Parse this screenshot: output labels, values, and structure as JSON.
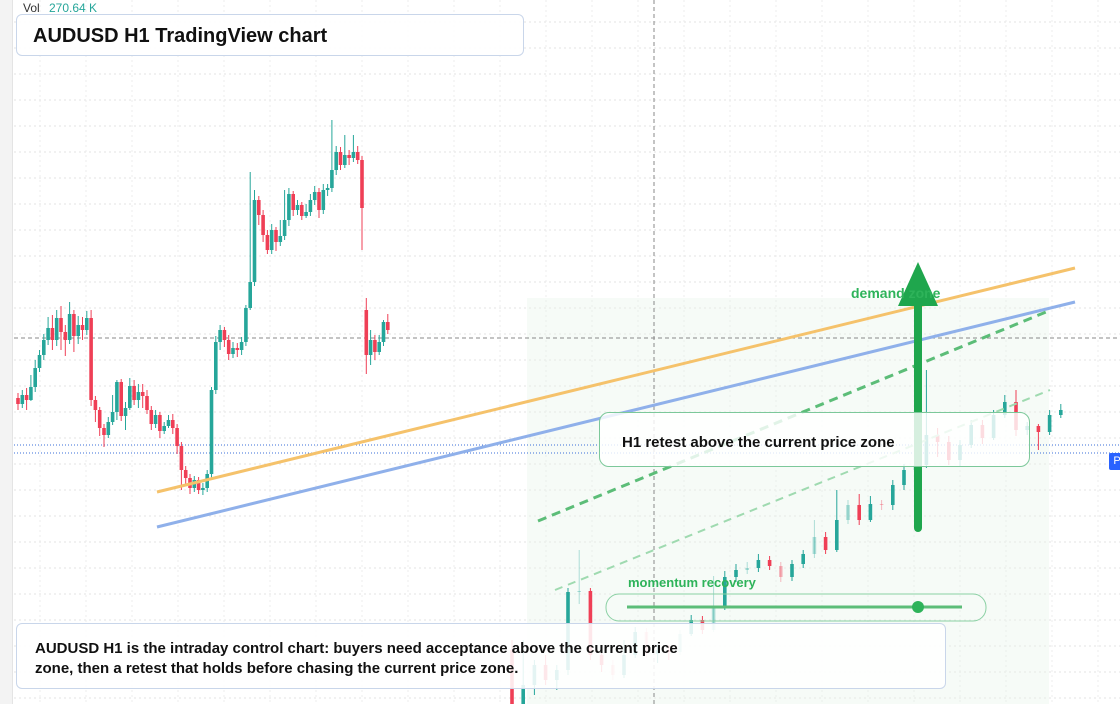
{
  "header": {
    "vol_label": "Vol",
    "vol_value": "270.64 K",
    "title": "AUDUSD H1 TradingView chart"
  },
  "annotations": {
    "retest": "H1 retest above the current price zone",
    "demand": "demand zone",
    "momentum": "momentum recovery",
    "note": "AUDUSD H1 is the intraday control chart: buyers need acceptance above the current price zone, then a retest that holds before chasing the current price zone.",
    "price_tag": "P"
  },
  "colors": {
    "up": "#26a69a",
    "down": "#ef3f56",
    "trend_orange": "#f5c26b",
    "trend_blue": "#8fb0ea",
    "zone_green": "#2eb35a",
    "arrow_green": "#1fa64d"
  },
  "chart_data": {
    "type": "candlestick",
    "title": "AUDUSD H1 TradingView chart",
    "y_axis": "price (scale not labeled)",
    "candles_ohlc": [
      [
        64.2,
        63.6,
        64.7,
        63.0
      ],
      [
        63.6,
        64.5,
        65.0,
        63.2
      ],
      [
        64.5,
        64.0,
        65.2,
        63.0
      ],
      [
        64.0,
        65.3,
        66.5,
        63.9
      ],
      [
        65.3,
        67.2,
        68.0,
        64.8
      ],
      [
        67.2,
        68.5,
        69.0,
        66.8
      ],
      [
        68.5,
        70.0,
        70.6,
        68.0
      ],
      [
        70.0,
        71.2,
        72.3,
        69.5
      ],
      [
        71.2,
        70.0,
        72.5,
        69.0
      ],
      [
        70.0,
        72.2,
        73.0,
        69.4
      ],
      [
        72.2,
        70.8,
        73.4,
        69.0
      ],
      [
        70.8,
        70.0,
        71.5,
        68.4
      ],
      [
        70.0,
        72.6,
        73.8,
        69.6
      ],
      [
        72.6,
        70.4,
        73.0,
        68.8
      ],
      [
        70.4,
        71.5,
        72.4,
        69.6
      ],
      [
        71.5,
        71.0,
        72.3,
        70.0
      ],
      [
        71.0,
        72.2,
        72.9,
        70.5
      ],
      [
        72.2,
        64.0,
        73.0,
        63.4
      ],
      [
        64.0,
        63.0,
        64.4,
        61.8
      ],
      [
        63.0,
        61.2,
        63.3,
        60.4
      ],
      [
        61.2,
        60.5,
        61.6,
        59.3
      ],
      [
        60.5,
        61.8,
        62.3,
        60.2
      ],
      [
        61.8,
        62.8,
        64.5,
        61.5
      ],
      [
        62.8,
        65.8,
        66.0,
        62.0
      ],
      [
        65.8,
        62.4,
        66.1,
        61.9
      ],
      [
        62.4,
        63.2,
        63.8,
        61.0
      ],
      [
        63.2,
        65.4,
        66.2,
        63.0
      ],
      [
        65.4,
        64.0,
        66.0,
        63.5
      ],
      [
        64.0,
        64.8,
        65.6,
        63.2
      ],
      [
        64.8,
        64.4,
        65.6,
        63.2
      ],
      [
        64.4,
        63.0,
        65.0,
        62.6
      ],
      [
        63.0,
        61.6,
        63.4,
        61.0
      ],
      [
        61.6,
        62.5,
        63.0,
        61.2
      ],
      [
        62.5,
        60.9,
        62.8,
        60.2
      ],
      [
        60.9,
        61.4,
        61.8,
        60.6
      ],
      [
        61.4,
        62.0,
        62.5,
        61.2
      ],
      [
        62.0,
        61.2,
        62.6,
        60.6
      ],
      [
        61.2,
        59.4,
        61.6,
        58.6
      ],
      [
        59.4,
        57.0,
        59.8,
        55.0
      ],
      [
        57.0,
        56.2,
        57.4,
        55.6
      ],
      [
        56.2,
        55.2,
        56.6,
        54.6
      ],
      [
        55.2,
        56.0,
        56.4,
        54.8
      ],
      [
        56.0,
        55.0,
        56.3,
        54.6
      ],
      [
        55.0,
        55.2,
        55.7,
        54.5
      ],
      [
        55.2,
        56.6,
        57.0,
        54.8
      ],
      [
        56.6,
        65.0,
        65.3,
        56.2
      ],
      [
        65.0,
        69.8,
        70.4,
        64.6
      ],
      [
        69.8,
        71.0,
        71.5,
        69.0
      ],
      [
        71.0,
        70.0,
        71.3,
        69.3
      ],
      [
        70.0,
        68.6,
        70.5,
        68.0
      ],
      [
        68.6,
        69.2,
        69.8,
        68.2
      ],
      [
        69.2,
        69.0,
        69.7,
        68.3
      ],
      [
        69.0,
        69.8,
        70.3,
        68.5
      ],
      [
        69.8,
        73.2,
        73.5,
        69.4
      ],
      [
        73.2,
        75.8,
        86.8,
        73.0
      ],
      [
        75.8,
        84.0,
        85.0,
        75.4
      ],
      [
        84.0,
        82.5,
        84.4,
        81.5
      ],
      [
        82.5,
        80.5,
        83.0,
        79.8
      ],
      [
        80.5,
        79.0,
        81.0,
        78.6
      ],
      [
        79.0,
        81.0,
        81.6,
        78.6
      ],
      [
        81.0,
        79.8,
        81.3,
        78.9
      ],
      [
        79.8,
        80.4,
        82.0,
        79.4
      ],
      [
        80.4,
        82.0,
        85.0,
        80.0
      ],
      [
        82.0,
        84.6,
        85.2,
        81.4
      ],
      [
        84.6,
        83.0,
        84.9,
        82.4
      ],
      [
        83.0,
        83.5,
        84.0,
        82.5
      ],
      [
        83.5,
        82.4,
        83.8,
        82.0
      ],
      [
        82.4,
        82.8,
        83.6,
        82.2
      ],
      [
        82.8,
        84.0,
        84.6,
        82.4
      ],
      [
        84.0,
        84.8,
        85.4,
        83.5
      ],
      [
        84.8,
        83.0,
        85.2,
        82.2
      ],
      [
        83.0,
        85.0,
        85.6,
        82.6
      ],
      [
        85.0,
        85.2,
        85.6,
        84.4
      ],
      [
        85.2,
        87.0,
        92.0,
        84.8
      ],
      [
        87.0,
        88.8,
        89.4,
        86.5
      ],
      [
        88.8,
        87.5,
        89.3,
        87.0
      ],
      [
        87.5,
        88.5,
        90.5,
        87.2
      ],
      [
        88.5,
        88.2,
        89.0,
        87.5
      ],
      [
        88.2,
        88.8,
        90.5,
        87.8
      ],
      [
        88.8,
        88.0,
        89.4,
        87.6
      ],
      [
        88.0,
        83.2,
        88.4,
        79.0
      ],
      [
        73.0,
        68.5,
        74.2,
        66.6
      ],
      [
        68.5,
        70.0,
        71.0,
        67.5
      ],
      [
        70.0,
        68.8,
        70.5,
        68.0
      ],
      [
        68.8,
        69.8,
        70.5,
        68.5
      ],
      [
        69.8,
        71.8,
        72.0,
        69.4
      ],
      [
        71.8,
        71.0,
        72.6,
        70.6
      ]
    ],
    "candles_second_segment_ohlc": [
      [
        21.0,
        15.0,
        22.0,
        14.0
      ],
      [
        15.0,
        17.5,
        22.0,
        14.5
      ],
      [
        17.5,
        19.5,
        20.0,
        16.5
      ],
      [
        19.5,
        18.0,
        20.5,
        17.5
      ],
      [
        18.0,
        19.0,
        19.5,
        17.0
      ],
      [
        19.0,
        26.8,
        27.2,
        18.5
      ],
      [
        26.8,
        26.9,
        31.0,
        25.6
      ],
      [
        26.9,
        20.5,
        27.2,
        20.0
      ],
      [
        20.5,
        19.5,
        21.0,
        18.8
      ],
      [
        19.5,
        18.5,
        20.0,
        18.0
      ],
      [
        18.5,
        20.5,
        22.0,
        18.2
      ],
      [
        20.5,
        22.8,
        23.3,
        20.2
      ],
      [
        22.8,
        20.6,
        23.2,
        20.2
      ],
      [
        20.6,
        21.0,
        21.6,
        19.7
      ],
      [
        21.0,
        20.8,
        21.5,
        20.0
      ],
      [
        20.8,
        22.6,
        23.0,
        20.5
      ],
      [
        22.6,
        24.0,
        24.5,
        22.4
      ],
      [
        24.0,
        23.0,
        24.4,
        22.6
      ],
      [
        23.0,
        25.2,
        28.4,
        22.8
      ],
      [
        25.2,
        28.3,
        28.9,
        25.0
      ],
      [
        28.3,
        29.0,
        29.6,
        27.8
      ],
      [
        29.0,
        29.2,
        29.8,
        28.6
      ],
      [
        29.2,
        30.0,
        30.6,
        28.8
      ],
      [
        30.0,
        29.4,
        30.4,
        29.0
      ],
      [
        29.4,
        28.3,
        29.8,
        27.8
      ],
      [
        28.3,
        29.6,
        30.0,
        27.9
      ],
      [
        29.6,
        30.6,
        31.0,
        29.2
      ],
      [
        30.6,
        32.3,
        34.0,
        30.2
      ],
      [
        32.3,
        31.0,
        32.8,
        30.6
      ],
      [
        31.0,
        34.0,
        37.0,
        30.8
      ],
      [
        34.0,
        35.5,
        36.0,
        33.6
      ],
      [
        35.5,
        34.0,
        36.6,
        33.5
      ],
      [
        34.0,
        35.6,
        36.4,
        33.8
      ],
      [
        35.6,
        35.5,
        36.0,
        35.0
      ],
      [
        35.5,
        37.5,
        38.0,
        35.0
      ],
      [
        37.5,
        39.0,
        39.6,
        37.0
      ],
      [
        39.0,
        39.5,
        45.0,
        38.8
      ],
      [
        39.5,
        42.5,
        49.0,
        39.2
      ],
      [
        42.5,
        41.8,
        43.2,
        40.3
      ],
      [
        41.8,
        40.0,
        42.4,
        39.5
      ],
      [
        40.0,
        41.5,
        42.0,
        39.4
      ],
      [
        41.5,
        43.5,
        44.0,
        41.2
      ],
      [
        43.5,
        42.2,
        44.0,
        41.6
      ],
      [
        42.2,
        44.5,
        45.0,
        42.0
      ],
      [
        44.5,
        45.8,
        46.5,
        44.2
      ],
      [
        45.8,
        43.0,
        47.0,
        42.4
      ],
      [
        43.0,
        43.4,
        43.8,
        42.5
      ],
      [
        43.4,
        42.8,
        43.6,
        41.0
      ],
      [
        42.8,
        44.5,
        45.0,
        42.5
      ],
      [
        44.5,
        45.0,
        45.6,
        44.2
      ]
    ],
    "trend_lines": [
      "orange rising trendline",
      "blue rising trendline",
      "green dashed channel lines"
    ],
    "annotations": [
      "H1 retest above the current price zone",
      "demand zone",
      "momentum recovery"
    ]
  }
}
